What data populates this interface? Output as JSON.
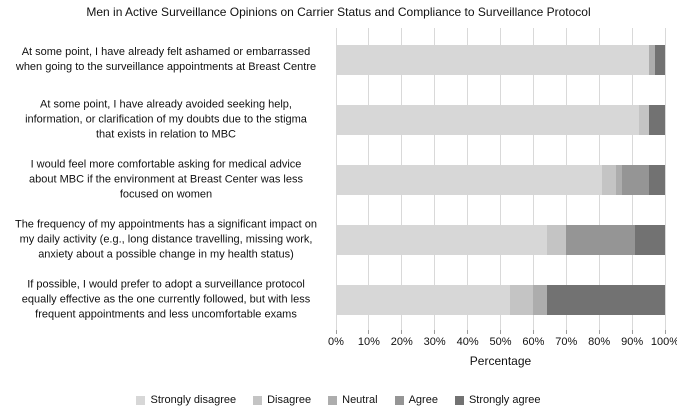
{
  "chart_data": {
    "type": "bar",
    "variant": "horizontal-stacked-100pct",
    "title": "Men in Active Surveillance Opinions on Carrier Status and Compliance to Surveillance Protocol",
    "xlabel": "Percentage",
    "xlim": [
      0,
      100
    ],
    "x_ticks": [
      "0%",
      "10%",
      "20%",
      "30%",
      "40%",
      "50%",
      "60%",
      "70%",
      "80%",
      "90%",
      "100%"
    ],
    "grid": "vertical-major",
    "legend_position": "bottom",
    "gridline_color": "#d9d9d9",
    "categories": [
      "At some point, I have already felt ashamed or embarrassed\nwhen going to the surveillance appointments at Breast Centre",
      "At some point, I have already avoided seeking help,\ninformation, or clarification of my doubts due to the stigma\nthat exists in relation to MBC",
      "I would feel more comfortable asking for medical advice\nabout MBC if the environment at Breast Center was less\nfocused on women",
      "The frequency of my appointments has a significant impact on\nmy daily activity (e.g., long distance travelling, missing work,\nanxiety about a possible change in my health status)",
      "If possible, I would prefer to adopt a surveillance protocol\nequally effective as the one currently followed, but with less\nfrequent appointments and less uncomfortable exams"
    ],
    "series": [
      {
        "name": "Strongly disagree",
        "color": "#d7d7d7",
        "values": [
          95,
          92,
          81,
          64,
          53
        ]
      },
      {
        "name": "Disagree",
        "color": "#c4c4c4",
        "values": [
          0,
          3,
          4,
          6,
          7
        ]
      },
      {
        "name": "Neutral",
        "color": "#adadad",
        "values": [
          2,
          0,
          2,
          0,
          4
        ]
      },
      {
        "name": "Agree",
        "color": "#959595",
        "values": [
          0,
          0,
          8,
          21,
          0
        ]
      },
      {
        "name": "Strongly agree",
        "color": "#727272",
        "values": [
          3,
          5,
          5,
          9,
          36
        ]
      }
    ]
  }
}
